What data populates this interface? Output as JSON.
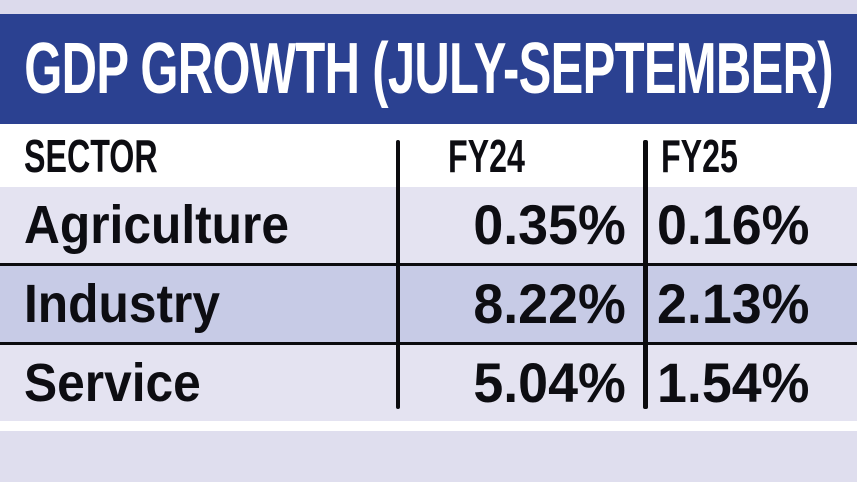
{
  "banner": {
    "title": "GDP GROWTH (JULY-SEPTEMBER)"
  },
  "table": {
    "headers": [
      "SECTOR",
      "FY24",
      "FY25"
    ],
    "rows": [
      {
        "sector": "Agriculture",
        "fy24": "0.35%",
        "fy25": "0.16%"
      },
      {
        "sector": "Industry",
        "fy24": "8.22%",
        "fy25": "2.13%"
      },
      {
        "sector": "Service",
        "fy24": "5.04%",
        "fy25": "1.54%"
      }
    ]
  },
  "colors": {
    "banner_blue": "#2b4191",
    "banner_text": "#ffffff",
    "top_strip": "#dcdaec",
    "row_light": "#e4e3f1",
    "row_dark": "#c7cbe6",
    "footer_strip": "#dfdeee",
    "text_black": "#0d0d12",
    "divider_black": "#0b0b0e"
  },
  "chart_data": {
    "type": "table",
    "title": "GDP GROWTH (JULY-SEPTEMBER)",
    "columns": [
      "SECTOR",
      "FY24",
      "FY25"
    ],
    "categories": [
      "Agriculture",
      "Industry",
      "Service"
    ],
    "series": [
      {
        "name": "FY24",
        "values": [
          0.35,
          8.22,
          5.04
        ]
      },
      {
        "name": "FY25",
        "values": [
          0.16,
          2.13,
          1.54
        ]
      }
    ],
    "unit": "%"
  }
}
